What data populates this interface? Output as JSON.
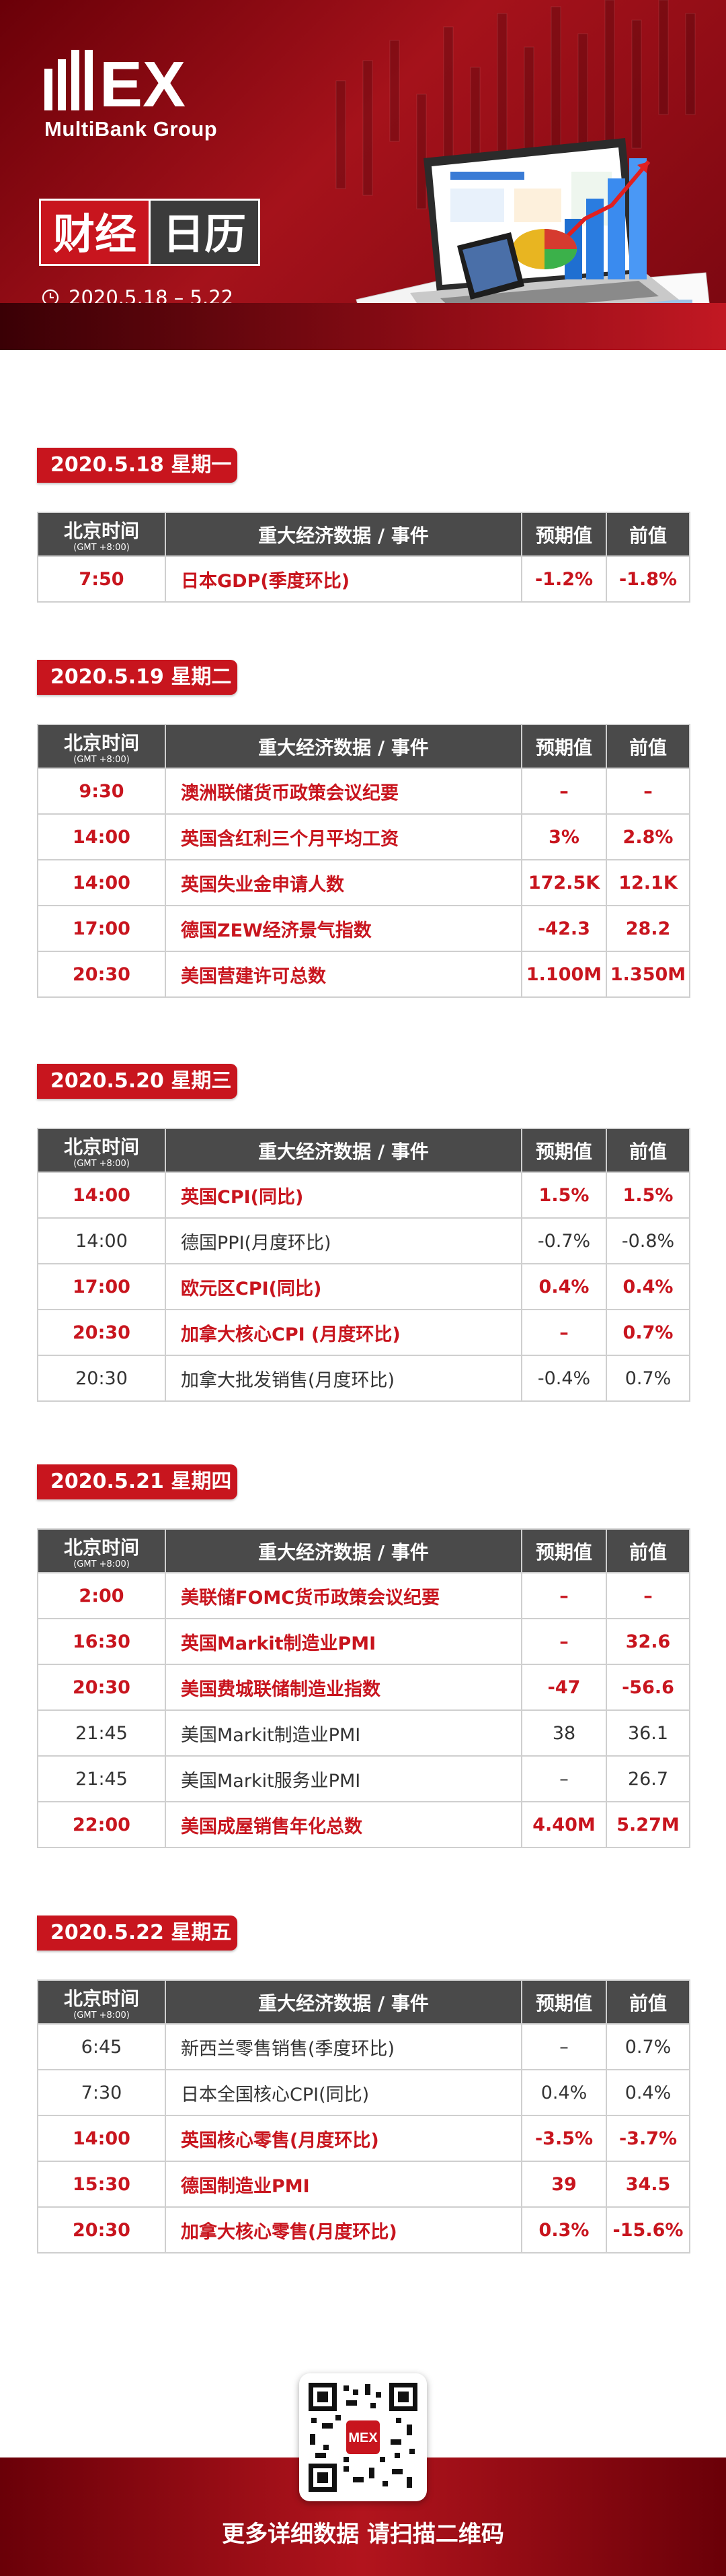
{
  "header": {
    "logo_text": "MEX",
    "logo_sub": "MultiBank Group",
    "title_part1": "财经",
    "title_part2": "日历",
    "date_range": "2020.5.18 – 5.22",
    "clock_icon": "clock-icon",
    "brand_color": "#c8151e"
  },
  "table_headers": {
    "time": "北京时间",
    "time_sub": "(GMT +8:00)",
    "event": "重大经济数据 / 事件",
    "forecast": "预期值",
    "previous": "前值"
  },
  "days": [
    {
      "label": "2020.5.18 星期一",
      "rows": [
        {
          "time": "7:50",
          "event": "日本GDP(季度环比)",
          "forecast": "-1.2%",
          "previous": "-1.8%",
          "highlight": true
        }
      ]
    },
    {
      "label": "2020.5.19 星期二",
      "rows": [
        {
          "time": "9:30",
          "event": "澳洲联储货币政策会议纪要",
          "forecast": "–",
          "previous": "–",
          "highlight": true
        },
        {
          "time": "14:00",
          "event": "英国含红利三个月平均工资",
          "forecast": "3%",
          "previous": "2.8%",
          "highlight": true
        },
        {
          "time": "14:00",
          "event": "英国失业金申请人数",
          "forecast": "172.5K",
          "previous": "12.1K",
          "highlight": true
        },
        {
          "time": "17:00",
          "event": "德国ZEW经济景气指数",
          "forecast": "-42.3",
          "previous": "28.2",
          "highlight": true
        },
        {
          "time": "20:30",
          "event": "美国营建许可总数",
          "forecast": "1.100M",
          "previous": "1.350M",
          "highlight": true
        }
      ]
    },
    {
      "label": "2020.5.20 星期三",
      "rows": [
        {
          "time": "14:00",
          "event": "英国CPI(同比)",
          "forecast": "1.5%",
          "previous": "1.5%",
          "highlight": true
        },
        {
          "time": "14:00",
          "event": "德国PPI(月度环比)",
          "forecast": "-0.7%",
          "previous": "-0.8%",
          "highlight": false
        },
        {
          "time": "17:00",
          "event": "欧元区CPI(同比)",
          "forecast": "0.4%",
          "previous": "0.4%",
          "highlight": true
        },
        {
          "time": "20:30",
          "event": "加拿大核心CPI (月度环比)",
          "forecast": "–",
          "previous": "0.7%",
          "highlight": true
        },
        {
          "time": "20:30",
          "event": "加拿大批发销售(月度环比)",
          "forecast": "-0.4%",
          "previous": "0.7%",
          "highlight": false
        }
      ]
    },
    {
      "label": "2020.5.21 星期四",
      "rows": [
        {
          "time": "2:00",
          "event": "美联储FOMC货币政策会议纪要",
          "forecast": "–",
          "previous": "–",
          "highlight": true
        },
        {
          "time": "16:30",
          "event": "英国Markit制造业PMI",
          "forecast": "–",
          "previous": "32.6",
          "highlight": true
        },
        {
          "time": "20:30",
          "event": "美国费城联储制造业指数",
          "forecast": "-47",
          "previous": "-56.6",
          "highlight": true
        },
        {
          "time": "21:45",
          "event": "美国Markit制造业PMI",
          "forecast": "38",
          "previous": "36.1",
          "highlight": false
        },
        {
          "time": "21:45",
          "event": "美国Markit服务业PMI",
          "forecast": "–",
          "previous": "26.7",
          "highlight": false
        },
        {
          "time": "22:00",
          "event": "美国成屋销售年化总数",
          "forecast": "4.40M",
          "previous": "5.27M",
          "highlight": true
        }
      ]
    },
    {
      "label": "2020.5.22 星期五",
      "rows": [
        {
          "time": "6:45",
          "event": "新西兰零售销售(季度环比)",
          "forecast": "–",
          "previous": "0.7%",
          "highlight": false
        },
        {
          "time": "7:30",
          "event": "日本全国核心CPI(同比)",
          "forecast": "0.4%",
          "previous": "0.4%",
          "highlight": false
        },
        {
          "time": "14:00",
          "event": "英国核心零售(月度环比)",
          "forecast": "-3.5%",
          "previous": "-3.7%",
          "highlight": true
        },
        {
          "time": "15:30",
          "event": "德国制造业PMI",
          "forecast": "39",
          "previous": "34.5",
          "highlight": true
        },
        {
          "time": "20:30",
          "event": "加拿大核心零售(月度环比)",
          "forecast": "0.3%",
          "previous": "-15.6%",
          "highlight": true
        }
      ]
    }
  ],
  "footer": {
    "cta_text": "更多详细数据 请扫描二维码",
    "qr_badge": "MEX",
    "qr_icon": "qr-code-icon"
  }
}
